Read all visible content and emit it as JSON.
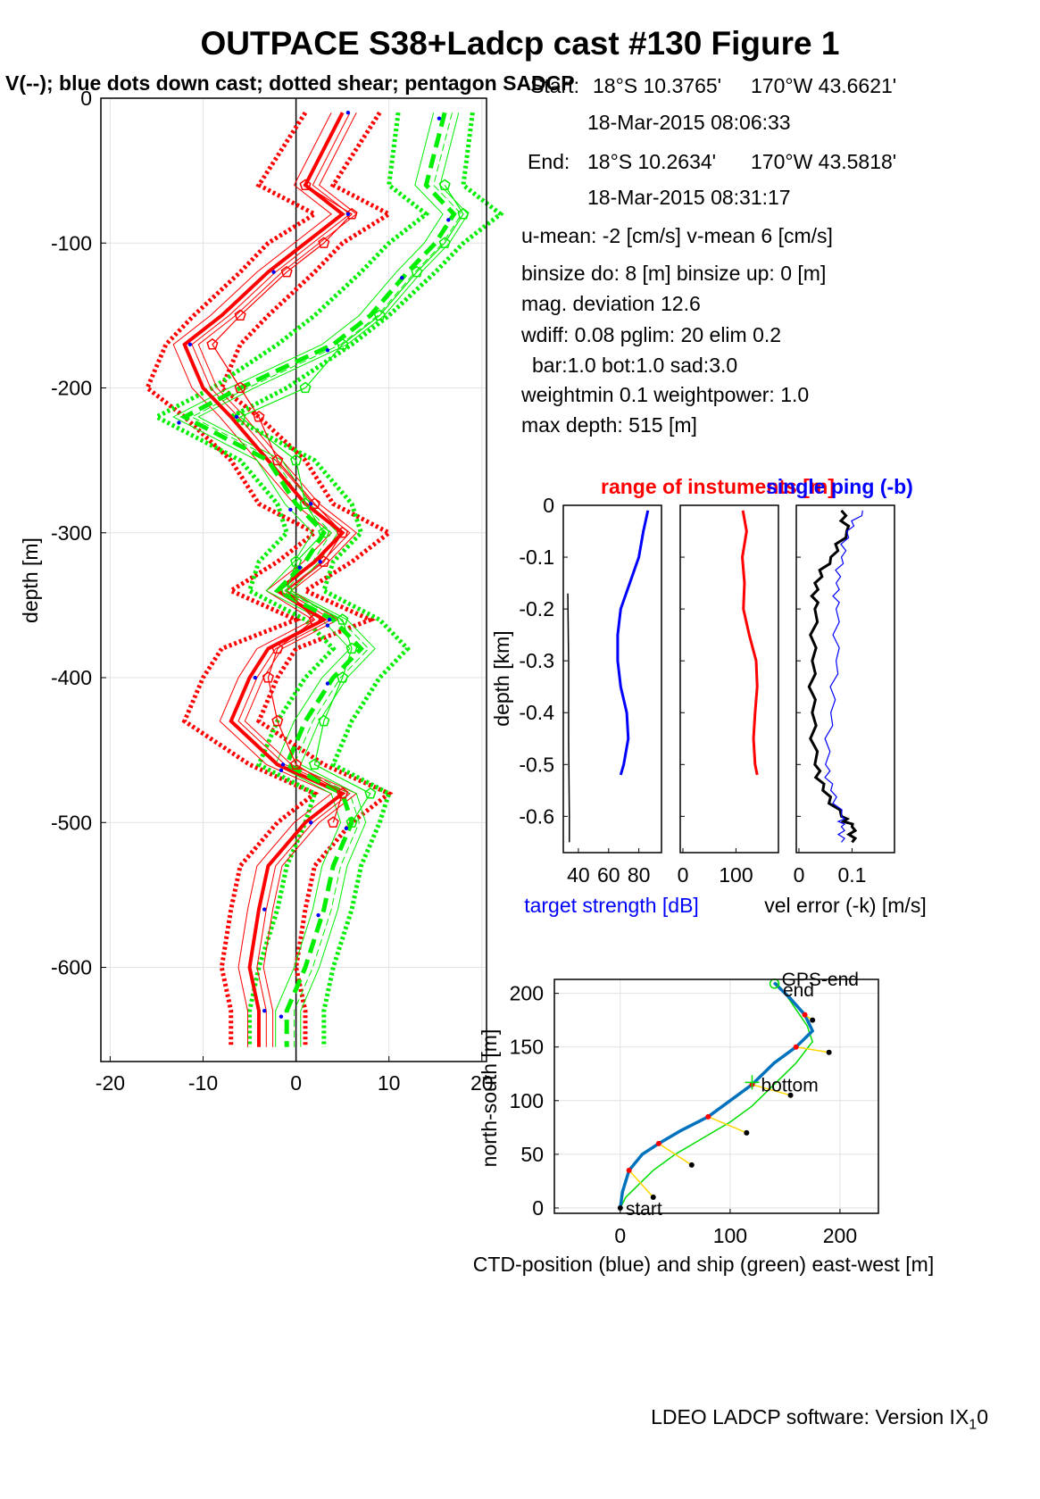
{
  "title": "OUTPACE S38+Ladcp cast #130  Figure 1",
  "subtitle": "V(--); blue dots down cast; dotted shear; pentagon SADCP",
  "info": {
    "start_label": "Start:",
    "start_lat": "18°S 10.3765'",
    "start_lon": "170°W 43.6621'",
    "start_time": "18-Mar-2015 08:06:33",
    "end_label": "End:",
    "end_lat": "18°S 10.2634'",
    "end_lon": "170°W 43.5818'",
    "end_time": "18-Mar-2015 08:31:17",
    "means": "u-mean:  -2 [cm/s]    v-mean   6 [cm/s]",
    "binsize": "binsize do: 8 [m]  binsize up:  0 [m]",
    "magdev": "mag. deviation 12.6",
    "wdiff": "wdiff: 0.08  pglim: 20  elim 0.2",
    "bar": "bar:1.0 bot:1.0 sad:3.0",
    "weight": "weightmin 0.1  weightpower: 1.0",
    "maxdepth": "max depth: 515 [m]"
  },
  "footer": "LDEO LADCP software: Version IX",
  "footer_sub": "1",
  "footer_tail": "0",
  "colors": {
    "u": "#ff0000",
    "v": "#00ee00",
    "down": "#0000ff",
    "ts": "#0000ff",
    "ctd": "#0072bd",
    "ship": "#00dd00",
    "link": "#ffd700"
  },
  "chart_data": [
    {
      "type": "line",
      "name": "profile",
      "ylabel": "depth [m]",
      "xlim": [
        -21,
        20.5
      ],
      "ylim": [
        -665,
        0
      ],
      "xticks": [
        -20,
        -10,
        0,
        10,
        20
      ],
      "yticks": [
        0,
        -100,
        -200,
        -300,
        -400,
        -500,
        -600
      ],
      "xtick_labels": [
        "-20",
        "-10",
        "0",
        "10",
        "20"
      ],
      "ytick_labels": [
        "0",
        "-100",
        "-200",
        "-300",
        "-400",
        "-500",
        "-600"
      ],
      "grid": true,
      "depth": [
        -10,
        -60,
        -80,
        -100,
        -120,
        -150,
        -170,
        -200,
        -220,
        -250,
        -280,
        -300,
        -320,
        -340,
        -360,
        -380,
        -400,
        -430,
        -460,
        -480,
        -500,
        -530,
        -560,
        -600,
        -630,
        -655
      ],
      "series": [
        {
          "name": "u",
          "values": [
            5,
            1,
            5,
            1,
            -3,
            -8,
            -12,
            -10,
            -7,
            -3,
            1,
            5,
            2,
            -2,
            3,
            -3,
            -5,
            -7,
            -2,
            5,
            1,
            -3,
            -4,
            -5,
            -4,
            -4
          ]
        },
        {
          "name": "v",
          "values": [
            16,
            14,
            17,
            15,
            12,
            8,
            4,
            -6,
            -12,
            -3,
            0,
            3,
            1,
            -2,
            4,
            7,
            4,
            1,
            -1,
            5,
            6,
            4,
            3,
            1,
            -1,
            -1
          ]
        },
        {
          "name": "u_shear",
          "values": [
            5,
            0,
            6,
            1,
            -2,
            -7,
            -10,
            -12,
            -8,
            -3,
            0,
            6,
            2,
            -3,
            4,
            -4,
            -6,
            -8,
            -1,
            6,
            2,
            -2,
            -3,
            -4,
            -3,
            -3
          ]
        },
        {
          "name": "v_shear",
          "values": [
            15,
            14,
            18,
            14,
            11,
            6,
            2,
            -5,
            -11,
            -2,
            2,
            3,
            0,
            -1,
            5,
            8,
            5,
            2,
            0,
            6,
            5,
            3,
            2,
            0,
            -1,
            -1
          ]
        },
        {
          "name": "u_sadcp",
          "values": [
            null,
            1,
            6,
            3,
            -1,
            -6,
            -9,
            -6,
            -4,
            -2,
            2,
            5,
            3,
            -1,
            2,
            -2,
            -3,
            -2,
            0,
            5,
            4,
            null,
            null,
            null,
            null,
            null
          ]
        },
        {
          "name": "v_sadcp",
          "values": [
            null,
            16,
            18,
            16,
            13,
            9,
            5,
            1,
            -6,
            0,
            1,
            3,
            0,
            -1,
            5,
            6,
            5,
            3,
            2,
            8,
            6,
            null,
            null,
            null,
            null,
            null
          ]
        }
      ]
    },
    {
      "type": "line",
      "name": "target-strength",
      "title": "range of instuments [m]",
      "ylabel": "depth [km]",
      "xlabel": "target strength [dB]",
      "ylim": [
        -0.67,
        0
      ],
      "yticks": [
        0,
        -0.1,
        -0.2,
        -0.3,
        -0.4,
        -0.5,
        -0.6
      ],
      "ytick_labels": [
        "0",
        "-0.1",
        "-0.2",
        "-0.3",
        "-0.4",
        "-0.5",
        "-0.6"
      ],
      "xtick_labels": [
        "40",
        "60",
        "80"
      ],
      "depth": [
        -0.01,
        -0.05,
        -0.1,
        -0.15,
        -0.2,
        -0.25,
        -0.3,
        -0.35,
        -0.4,
        -0.45,
        -0.5,
        -0.52
      ],
      "values": [
        86,
        83,
        80,
        74,
        68,
        66,
        66,
        68,
        72,
        73,
        70,
        68
      ]
    },
    {
      "type": "line",
      "name": "range",
      "xtick_labels": [
        "0",
        "100"
      ],
      "depth": [
        -0.01,
        -0.05,
        -0.1,
        -0.15,
        -0.2,
        -0.25,
        -0.3,
        -0.35,
        -0.4,
        -0.45,
        -0.5,
        -0.52
      ],
      "values": [
        113,
        120,
        112,
        116,
        114,
        125,
        138,
        140,
        136,
        133,
        136,
        140
      ]
    },
    {
      "type": "line",
      "name": "vel-error",
      "title": "single ping (-b)",
      "xlabel": "vel error (-k) [m/s]",
      "xtick_labels": [
        "0",
        "0.1"
      ],
      "depth": [
        -0.01,
        -0.05,
        -0.1,
        -0.15,
        -0.2,
        -0.3,
        -0.4,
        -0.5,
        -0.55,
        -0.6,
        -0.62,
        -0.65
      ],
      "series": [
        {
          "name": "vel error",
          "values": [
            0.08,
            0.09,
            0.06,
            0.03,
            0.03,
            0.025,
            0.025,
            0.03,
            0.045,
            0.08,
            0.1,
            0.1
          ]
        },
        {
          "name": "single ping",
          "values": [
            0.12,
            0.09,
            0.08,
            0.07,
            0.07,
            0.07,
            0.06,
            0.05,
            0.06,
            0.08,
            0.08,
            0.08
          ]
        }
      ]
    },
    {
      "type": "line",
      "name": "position",
      "xlabel": "CTD-position (blue) and ship (green) east-west [m]",
      "ylabel": "north-south [m]",
      "xlim": [
        -60,
        235
      ],
      "ylim": [
        -5,
        213
      ],
      "xticks": [
        0,
        100,
        200
      ],
      "yticks": [
        0,
        50,
        100,
        150,
        200
      ],
      "xtick_labels": [
        "0",
        "100",
        "200"
      ],
      "ytick_labels": [
        "0",
        "50",
        "100",
        "150",
        "200"
      ],
      "series": [
        {
          "name": "CTD-position",
          "x": [
            0,
            2,
            8,
            20,
            35,
            55,
            80,
            100,
            120,
            140,
            160,
            175,
            168,
            155,
            145,
            140
          ],
          "y": [
            0,
            15,
            35,
            50,
            60,
            72,
            85,
            100,
            115,
            135,
            150,
            165,
            180,
            195,
            205,
            210
          ]
        },
        {
          "name": "ship",
          "x": [
            0,
            5,
            15,
            30,
            50,
            75,
            100,
            120,
            140,
            160,
            175,
            170,
            160,
            150,
            142
          ],
          "y": [
            0,
            10,
            20,
            35,
            50,
            65,
            80,
            95,
            115,
            135,
            155,
            170,
            185,
            200,
            210
          ]
        }
      ],
      "annotations": [
        {
          "label": "start",
          "x": 0,
          "y": 0
        },
        {
          "label": "bottom",
          "x": 120,
          "y": 117
        },
        {
          "label": "end",
          "x": 148,
          "y": 207
        },
        {
          "label": "GPS-end",
          "x": 142,
          "y": 209
        }
      ]
    }
  ]
}
